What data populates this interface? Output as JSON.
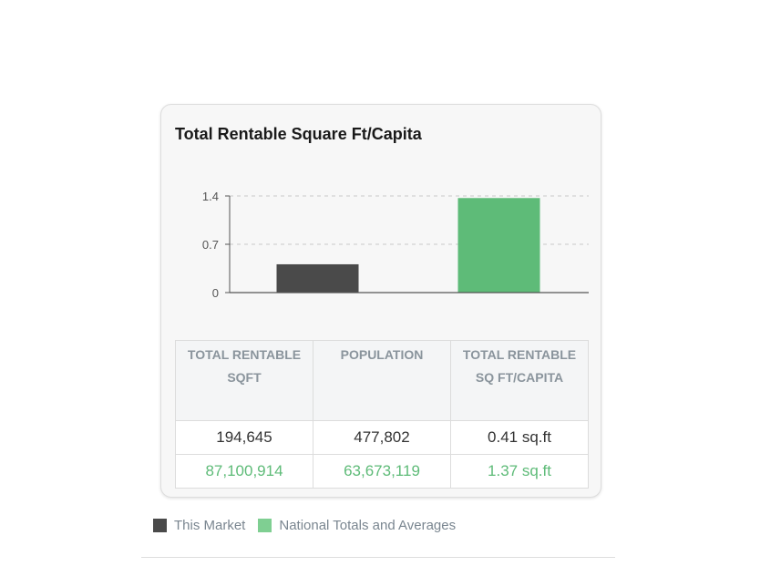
{
  "card": {
    "title": "Total Rentable Square Ft/Capita"
  },
  "colors": {
    "market": "#4a4a4a",
    "national": "#5ebb78",
    "grid": "#c8c8c8",
    "axis": "#555555"
  },
  "chart_data": {
    "type": "bar",
    "title": "Total Rentable Square Ft/Capita",
    "categories": [
      "This Market",
      "National Totals and Averages"
    ],
    "values": [
      0.41,
      1.37
    ],
    "ylim": [
      0,
      1.4
    ],
    "yticks": [
      0,
      0.7,
      1.4
    ],
    "ytick_labels": [
      "0",
      "0.7",
      "1.4"
    ],
    "grid": true
  },
  "table": {
    "headers": [
      "TOTAL RENTABLE SQFT",
      "POPULATION",
      "TOTAL RENTABLE SQ FT/CAPITA"
    ],
    "rows": [
      [
        "194,645",
        "477,802",
        "0.41 sq.ft"
      ],
      [
        "87,100,914",
        "63,673,119",
        "1.37 sq.ft"
      ]
    ]
  },
  "legend": [
    {
      "label": "This Market"
    },
    {
      "label": "National Totals and Averages"
    }
  ]
}
